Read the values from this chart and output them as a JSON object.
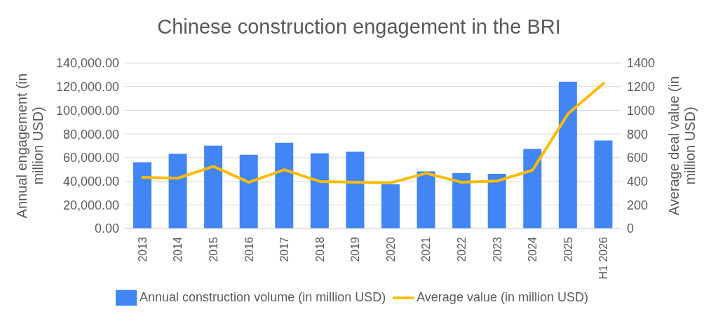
{
  "chart_data": {
    "type": "bar",
    "title": "Chinese construction engagement in the BRI",
    "ylabel": "Annual engagement (in million USD)",
    "y2label": "Average deal value (in million USD)",
    "categories": [
      "2013",
      "2014",
      "2015",
      "2016",
      "2017",
      "2018",
      "2019",
      "2020",
      "2021",
      "2022",
      "2023",
      "2024",
      "2025",
      "H1 2026"
    ],
    "series": [
      {
        "name": "Annual construction volume (in million USD)",
        "color": "#4285f4",
        "values": [
          56000,
          63200,
          70200,
          62500,
          72500,
          63600,
          65000,
          37400,
          48400,
          46800,
          46300,
          67400,
          124200,
          74400
        ]
      },
      {
        "name": "Average value (in million USD)",
        "type": "line",
        "axis": "y2",
        "color": "#fbbc04",
        "values": [
          433,
          426,
          526,
          391,
          498,
          398,
          391,
          386,
          468,
          391,
          402,
          494,
          971,
          1228
        ]
      }
    ],
    "ylim": [
      0,
      140000
    ],
    "yticks": [
      {
        "value": 0,
        "label": "0.00"
      },
      {
        "value": 20000,
        "label": "20,000.00"
      },
      {
        "value": 40000,
        "label": "40,000.00"
      },
      {
        "value": 60000,
        "label": "60,000.00"
      },
      {
        "value": 80000,
        "label": "80,000.00"
      },
      {
        "value": 100000,
        "label": "100,000.00"
      },
      {
        "value": 120000,
        "label": "120,000.00"
      },
      {
        "value": 140000,
        "label": "140,000.00"
      }
    ],
    "y2lim": [
      0,
      1400
    ],
    "y2ticks": [
      0,
      200,
      400,
      600,
      800,
      1000,
      1200,
      1400
    ],
    "grid": "y",
    "legend": "bottom",
    "marker": "none",
    "line_style": "solid"
  }
}
